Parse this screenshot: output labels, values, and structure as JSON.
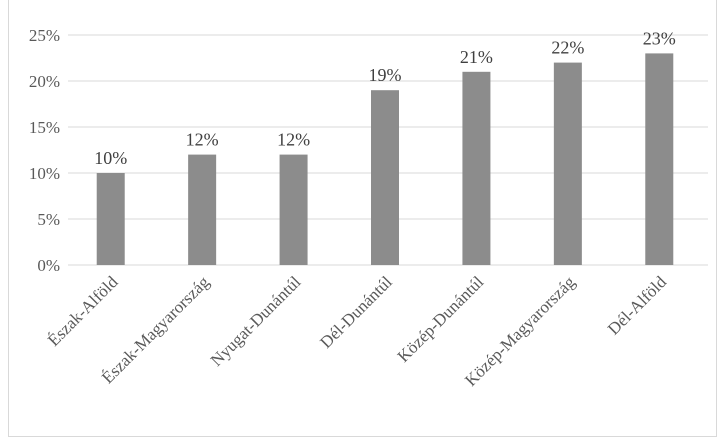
{
  "chart_data": {
    "type": "bar",
    "title": "",
    "xlabel": "",
    "ylabel": "",
    "categories": [
      "Észak-Alföld",
      "Észak-Magyarország",
      "Nyugat-Dunántúl",
      "Dél-Dunántúl",
      "Közép-Dunántúl",
      "Közép-Magyarország",
      "Dél-Alföld"
    ],
    "values": [
      10,
      12,
      12,
      19,
      21,
      22,
      23
    ],
    "data_labels": [
      "10%",
      "12%",
      "12%",
      "19%",
      "21%",
      "22%",
      "23%"
    ],
    "ylim": [
      0,
      25
    ],
    "yticks": [
      0,
      5,
      10,
      15,
      20,
      25
    ],
    "ytick_labels": [
      "0%",
      "5%",
      "10%",
      "15%",
      "20%",
      "25%"
    ],
    "grid": "horizontal",
    "legend": "none",
    "bar_color": "#8c8c8c",
    "grid_color": "#d9d9d9"
  }
}
